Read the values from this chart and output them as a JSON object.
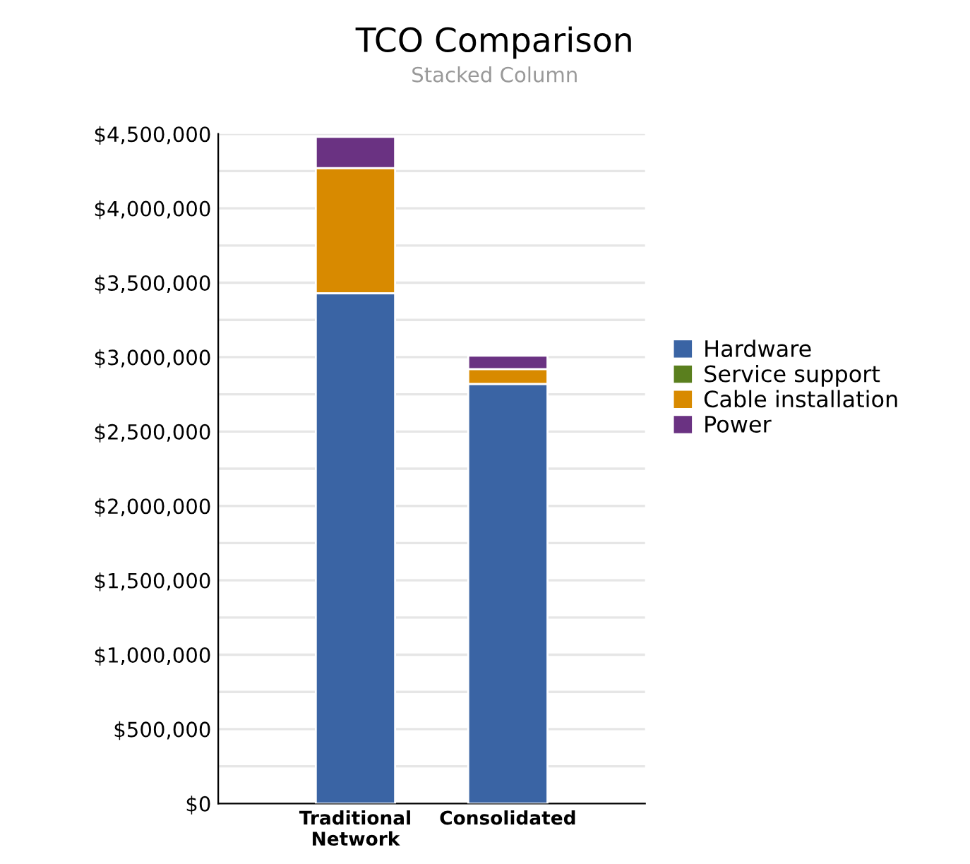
{
  "chart_data": {
    "type": "bar",
    "title": "TCO Comparison",
    "subtitle": "Stacked Column",
    "categories": [
      "Traditional\nNetwork",
      "Consolidated"
    ],
    "stacked": true,
    "series": [
      {
        "name": "Hardware",
        "color": "#3a64a4",
        "values": [
          3430000,
          2820000
        ]
      },
      {
        "name": "Service support",
        "color": "#5a7f1e",
        "values": [
          0,
          0
        ]
      },
      {
        "name": "Cable installation",
        "color": "#d88a00",
        "values": [
          840000,
          100000
        ]
      },
      {
        "name": "Power",
        "color": "#6a3282",
        "values": [
          210000,
          90000
        ]
      }
    ],
    "ylim": [
      0,
      4500000
    ],
    "yticks": [
      {
        "value": 0,
        "label": "$0"
      },
      {
        "value": 250000,
        "label": null
      },
      {
        "value": 500000,
        "label": "$500,000"
      },
      {
        "value": 750000,
        "label": null
      },
      {
        "value": 1000000,
        "label": "$1,000,000"
      },
      {
        "value": 1250000,
        "label": null
      },
      {
        "value": 1500000,
        "label": "$1,500,000"
      },
      {
        "value": 1750000,
        "label": null
      },
      {
        "value": 2000000,
        "label": "$2,000,000"
      },
      {
        "value": 2250000,
        "label": null
      },
      {
        "value": 2500000,
        "label": "$2,500,000"
      },
      {
        "value": 2750000,
        "label": null
      },
      {
        "value": 3000000,
        "label": "$3,000,000"
      },
      {
        "value": 3250000,
        "label": null
      },
      {
        "value": 3500000,
        "label": "$3,500,000"
      },
      {
        "value": 3750000,
        "label": null
      },
      {
        "value": 4000000,
        "label": "$4,000,000"
      },
      {
        "value": 4250000,
        "label": null
      },
      {
        "value": 4500000,
        "label": "$4,500,000"
      }
    ],
    "grid": "y",
    "legend": "right"
  }
}
